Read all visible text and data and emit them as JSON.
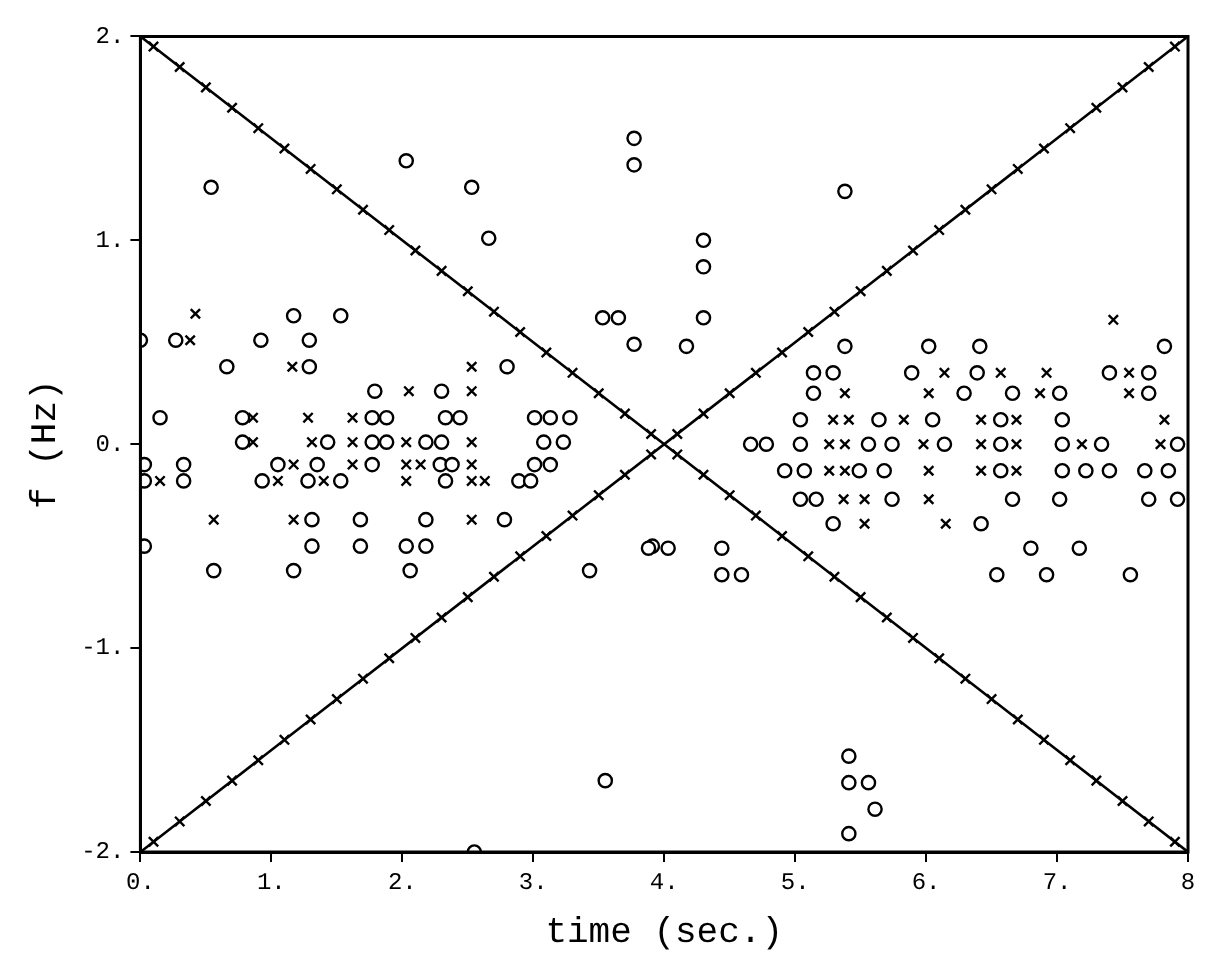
{
  "chart_data": {
    "type": "scatter",
    "xlabel": "time (sec.)",
    "ylabel": "f (Hz)",
    "xlim": [
      0,
      8
    ],
    "ylim": [
      -2,
      2
    ],
    "xticks": [
      {
        "value": 0,
        "label": "0."
      },
      {
        "value": 1,
        "label": "1."
      },
      {
        "value": 2,
        "label": "2."
      },
      {
        "value": 3,
        "label": "3."
      },
      {
        "value": 4,
        "label": "4."
      },
      {
        "value": 5,
        "label": "5."
      },
      {
        "value": 6,
        "label": "6."
      },
      {
        "value": 7,
        "label": "7."
      },
      {
        "value": 8,
        "label": "8"
      }
    ],
    "yticks": [
      {
        "value": -2,
        "label": "-2."
      },
      {
        "value": -1,
        "label": "-1."
      },
      {
        "value": 0,
        "label": "0."
      },
      {
        "value": 1,
        "label": "1."
      },
      {
        "value": 2,
        "label": "2."
      }
    ],
    "grid": false,
    "legend": false,
    "series": [
      {
        "type": "line",
        "color": "#000000",
        "marker": "none",
        "line_style": "solid",
        "x": [
          0,
          8
        ],
        "values": [
          2,
          -2
        ]
      },
      {
        "type": "line",
        "color": "#000000",
        "marker": "none",
        "line_style": "solid",
        "x": [
          0,
          8
        ],
        "values": [
          -2,
          2
        ]
      },
      {
        "type": "scatter",
        "color": "#000000",
        "marker": "cross",
        "x": [
          0.1,
          0.3,
          0.5,
          0.7,
          0.9,
          1.1,
          1.3,
          1.5,
          1.7,
          1.9,
          2.1,
          2.3,
          2.5,
          2.7,
          2.9,
          3.1,
          3.3,
          3.5,
          3.7,
          3.9,
          4.1,
          4.3,
          4.5,
          4.7,
          4.9,
          5.1,
          5.3,
          5.5,
          5.7,
          5.9,
          6.1,
          6.3,
          6.5,
          6.7,
          6.9,
          7.1,
          7.3,
          7.5,
          7.7,
          7.9
        ],
        "values": [
          1.95,
          1.85,
          1.75,
          1.65,
          1.55,
          1.45,
          1.35,
          1.25,
          1.15,
          1.05,
          0.95,
          0.85,
          0.75,
          0.65,
          0.55,
          0.45,
          0.35,
          0.25,
          0.15,
          0.05,
          -0.05,
          -0.15,
          -0.25,
          -0.35,
          -0.45,
          -0.55,
          -0.65,
          -0.75,
          -0.85,
          -0.95,
          -1.05,
          -1.15,
          -1.25,
          -1.35,
          -1.45,
          -1.55,
          -1.65,
          -1.75,
          -1.85,
          -1.95
        ]
      },
      {
        "type": "scatter",
        "color": "#000000",
        "marker": "cross",
        "x": [
          0.1,
          0.3,
          0.5,
          0.7,
          0.9,
          1.1,
          1.3,
          1.5,
          1.7,
          1.9,
          2.1,
          2.3,
          2.5,
          2.7,
          2.9,
          3.1,
          3.3,
          3.5,
          3.7,
          3.9,
          4.1,
          4.3,
          4.5,
          4.7,
          4.9,
          5.1,
          5.3,
          5.5,
          5.7,
          5.9,
          6.1,
          6.3,
          6.5,
          6.7,
          6.9,
          7.1,
          7.3,
          7.5,
          7.7,
          7.9
        ],
        "values": [
          -1.95,
          -1.85,
          -1.75,
          -1.65,
          -1.55,
          -1.45,
          -1.35,
          -1.25,
          -1.15,
          -1.05,
          -0.95,
          -0.85,
          -0.75,
          -0.65,
          -0.55,
          -0.45,
          -0.35,
          -0.25,
          -0.15,
          -0.05,
          0.05,
          0.15,
          0.25,
          0.35,
          0.45,
          0.55,
          0.65,
          0.75,
          0.85,
          0.95,
          1.05,
          1.15,
          1.25,
          1.35,
          1.45,
          1.55,
          1.65,
          1.75,
          1.85,
          1.95
        ]
      },
      {
        "type": "scatter",
        "color": "#000000",
        "marker": "cross",
        "x": [
          0.42,
          0.38,
          1.16,
          2.53,
          2.05,
          2.53,
          0.86,
          1.28,
          1.62,
          0.86,
          1.31,
          1.62,
          2.03,
          2.53,
          1.17,
          1.62,
          2.03,
          2.14,
          2.53,
          0.15,
          1.05,
          1.4,
          2.03,
          2.53,
          2.63,
          0.56,
          1.17,
          2.53,
          7.43,
          6.14,
          6.57,
          6.92,
          7.55,
          5.38,
          6.02,
          6.87,
          7.55,
          5.29,
          5.41,
          5.83,
          6.42,
          6.69,
          7.82,
          5.26,
          5.38,
          5.98,
          6.42,
          6.69,
          7.19,
          7.79,
          5.26,
          5.38,
          6.02,
          6.42,
          6.69,
          5.37,
          5.53,
          6.02,
          5.53,
          6.15
        ],
        "values": [
          0.64,
          0.51,
          0.38,
          0.38,
          0.26,
          0.26,
          0.13,
          0.13,
          0.13,
          0.01,
          0.01,
          0.01,
          0.01,
          0.01,
          -0.1,
          -0.1,
          -0.1,
          -0.1,
          -0.1,
          -0.18,
          -0.18,
          -0.18,
          -0.18,
          -0.18,
          -0.18,
          -0.37,
          -0.37,
          -0.37,
          0.61,
          0.35,
          0.35,
          0.35,
          0.35,
          0.25,
          0.25,
          0.25,
          0.25,
          0.12,
          0.12,
          0.12,
          0.12,
          0.12,
          0.12,
          0,
          0,
          0,
          0,
          0,
          0,
          0,
          -0.13,
          -0.13,
          -0.13,
          -0.13,
          -0.13,
          -0.27,
          -0.27,
          -0.27,
          -0.39,
          -0.39
        ]
      },
      {
        "type": "scatter",
        "color": "#000000",
        "marker": "circle",
        "x": [
          0.54,
          2.03,
          2.53,
          2.66,
          3.77,
          3.77,
          1.17,
          1.53,
          0,
          0.27,
          0.92,
          1.29,
          0.66,
          1.29,
          2.8,
          3.53,
          3.65,
          3.77,
          1.79,
          2.3,
          0.15,
          0.78,
          1.77,
          1.88,
          2.33,
          2.44,
          3.01,
          3.13,
          3.28,
          0.78,
          1.43,
          1.77,
          1.88,
          2.18,
          2.3,
          3.08,
          3.23,
          0.03,
          0.33,
          1.05,
          1.35,
          1.77,
          2.29,
          2.38,
          3.01,
          3.13,
          0.03,
          0.33,
          0.93,
          1.28,
          1.53,
          2.33,
          2.89,
          2.98,
          1.31,
          1.68,
          2.18,
          2.78,
          0.03,
          1.31,
          1.68,
          2.03,
          2.18,
          3.91,
          0.56,
          1.17,
          2.06,
          3.43,
          3.55,
          2.55,
          5.38,
          4.3,
          4.3,
          4.3,
          4.17,
          5.38,
          6.02,
          6.41,
          7.82,
          5.14,
          5.29,
          5.89,
          6.39,
          7.4,
          7.7,
          5.14,
          6.29,
          6.66,
          7.02,
          7.7,
          5.04,
          5.64,
          6.05,
          6.57,
          7.04,
          4.66,
          4.78,
          5.04,
          5.56,
          5.74,
          6.14,
          6.57,
          7.04,
          7.34,
          7.92,
          4.92,
          5.07,
          5.49,
          5.68,
          6.57,
          7.04,
          7.22,
          7.4,
          7.67,
          7.85,
          5.04,
          5.16,
          5.74,
          6.66,
          7.02,
          7.7,
          7.92,
          5.29,
          6.42,
          3.88,
          4.03,
          4.44,
          6.8,
          7.17,
          4.44,
          4.59,
          6.54,
          6.92,
          7.56,
          5.41,
          5.41,
          5.56,
          5.61,
          5.41
        ],
        "values": [
          1.26,
          1.39,
          1.26,
          1.01,
          1.5,
          1.37,
          0.63,
          0.63,
          0.51,
          0.51,
          0.51,
          0.51,
          0.38,
          0.38,
          0.38,
          0.62,
          0.62,
          0.49,
          0.26,
          0.26,
          0.13,
          0.13,
          0.13,
          0.13,
          0.13,
          0.13,
          0.13,
          0.13,
          0.13,
          0.01,
          0.01,
          0.01,
          0.01,
          0.01,
          0.01,
          0.01,
          0.01,
          -0.1,
          -0.1,
          -0.1,
          -0.1,
          -0.1,
          -0.1,
          -0.1,
          -0.1,
          -0.1,
          -0.18,
          -0.18,
          -0.18,
          -0.18,
          -0.18,
          -0.18,
          -0.18,
          -0.18,
          -0.37,
          -0.37,
          -0.37,
          -0.37,
          -0.5,
          -0.5,
          -0.5,
          -0.5,
          -0.5,
          -0.5,
          -0.62,
          -0.62,
          -0.62,
          -0.62,
          -1.65,
          -2,
          1.24,
          1,
          0.87,
          0.62,
          0.48,
          0.48,
          0.48,
          0.48,
          0.48,
          0.35,
          0.35,
          0.35,
          0.35,
          0.35,
          0.35,
          0.25,
          0.25,
          0.25,
          0.25,
          0.25,
          0.12,
          0.12,
          0.12,
          0.12,
          0.12,
          0,
          0,
          0,
          0,
          0,
          0,
          0,
          0,
          0,
          0,
          -0.13,
          -0.13,
          -0.13,
          -0.13,
          -0.13,
          -0.13,
          -0.13,
          -0.13,
          -0.13,
          -0.13,
          -0.27,
          -0.27,
          -0.27,
          -0.27,
          -0.27,
          -0.27,
          -0.27,
          -0.39,
          -0.39,
          -0.51,
          -0.51,
          -0.51,
          -0.51,
          -0.51,
          -0.64,
          -0.64,
          -0.64,
          -0.64,
          -0.64,
          -1.53,
          -1.66,
          -1.66,
          -1.79,
          -1.91
        ]
      }
    ]
  }
}
